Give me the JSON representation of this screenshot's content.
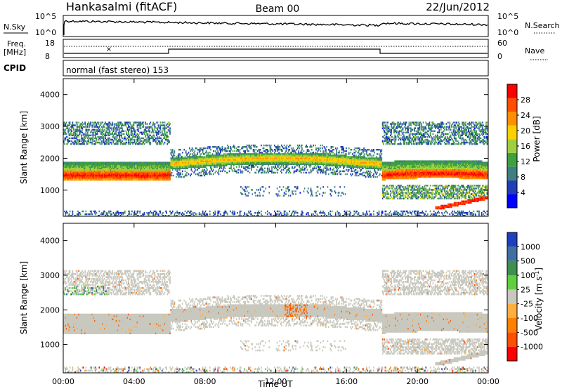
{
  "header": {
    "station": "Hankasalmi (fitACF)",
    "beam": "Beam 00",
    "date": "22/Jun/2012"
  },
  "noise_panel": {
    "left_label": "N.Sky",
    "right_label": "N.Search",
    "tick_hi": "10^5",
    "tick_lo": "10^0"
  },
  "freq_panel": {
    "left_label_1": "Freq.",
    "left_label_2": "[MHz]",
    "left_tick_hi": "18",
    "left_tick_lo": "8",
    "right_tick_hi": "60",
    "right_tick_lo": "0",
    "right_label": "Nave"
  },
  "cpid_panel": {
    "label": "CPID",
    "program": "normal (fast stereo) 153"
  },
  "colors": {
    "power_scale": [
      "#0000ff",
      "#1f3fb3",
      "#3f7f7f",
      "#3fa03f",
      "#9fcf3f",
      "#ffcf00",
      "#ff8f00",
      "#ff4f00",
      "#ff0000"
    ],
    "velocity_scale": [
      "#1f3fbf",
      "#3f6f9f",
      "#3f8f4f",
      "#5fcf3f",
      "#c8c8be",
      "#ffaf3f",
      "#ff7f00",
      "#ff4f00",
      "#ff0000"
    ]
  },
  "chart_data": [
    {
      "type": "heatmap",
      "name": "power",
      "ylabel": "Slant Range [km]",
      "xlabel": "",
      "x_ticks": [
        "00:00",
        "04:00",
        "08:00",
        "12:00",
        "16:00",
        "20:00",
        "00:00"
      ],
      "x_tick_hours": [
        0,
        4,
        8,
        12,
        16,
        20,
        24
      ],
      "xlim": [
        0,
        24
      ],
      "y_ticks": [
        1000,
        2000,
        3000,
        4000
      ],
      "ylim": [
        180,
        4500
      ],
      "colorbar": {
        "label": "Power [dB]",
        "ticks": [
          "4",
          "8",
          "12",
          "16",
          "20",
          "24",
          "28"
        ],
        "tick_values": [
          4,
          8,
          12,
          16,
          20,
          24,
          28
        ],
        "range": [
          0,
          32
        ]
      }
    },
    {
      "type": "heatmap",
      "name": "velocity",
      "ylabel": "Slant Range [km]",
      "xlabel": "Time UT",
      "x_ticks": [
        "00:00",
        "04:00",
        "08:00",
        "12:00",
        "16:00",
        "20:00",
        "00:00"
      ],
      "x_tick_hours": [
        0,
        4,
        8,
        12,
        16,
        20,
        24
      ],
      "xlim": [
        0,
        24
      ],
      "y_ticks": [
        1000,
        2000,
        3000,
        4000
      ],
      "ylim": [
        180,
        4500
      ],
      "colorbar": {
        "label": "Velocity [m s^-1]",
        "ticks": [
          "1000",
          "500",
          "100",
          "25",
          "-25",
          "-100",
          "-500",
          "-1000"
        ]
      }
    }
  ]
}
